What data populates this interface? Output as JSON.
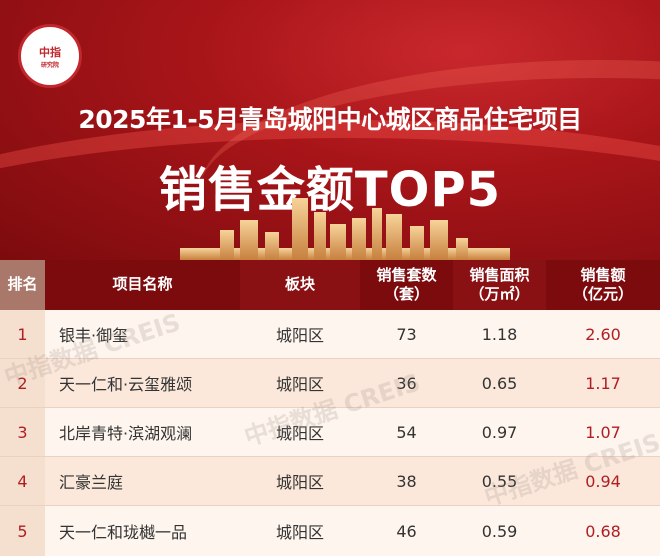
{
  "header": {
    "logo_text": "中指",
    "logo_ring": "CHINA INDEX ACADEMY",
    "logo_sub": "研究院",
    "title_line1": "2025年1-5月青岛城阳中心城区商品住宅项目",
    "title_line2": "销售金额TOP5"
  },
  "table": {
    "columns": [
      "排名",
      "项目名称",
      "板块",
      "销售套数\n（套）",
      "销售面积\n（万㎡）",
      "销售额\n（亿元）"
    ],
    "rows": [
      {
        "rank": "1",
        "name": "银丰·御玺",
        "block": "城阳区",
        "units": "73",
        "area": "1.18",
        "amount": "2.60"
      },
      {
        "rank": "2",
        "name": "天一仁和·云玺雅颂",
        "block": "城阳区",
        "units": "36",
        "area": "0.65",
        "amount": "1.17"
      },
      {
        "rank": "3",
        "name": "北岸青特·滨湖观澜",
        "block": "城阳区",
        "units": "54",
        "area": "0.97",
        "amount": "1.07"
      },
      {
        "rank": "4",
        "name": "汇豪兰庭",
        "block": "城阳区",
        "units": "38",
        "area": "0.55",
        "amount": "0.94"
      },
      {
        "rank": "5",
        "name": "天一仁和珑樾一品",
        "block": "城阳区",
        "units": "46",
        "area": "0.59",
        "amount": "0.68"
      }
    ]
  },
  "watermark": "中指数据 CREIS",
  "colors": {
    "accent": "#b01e23",
    "header_bg": "#7c0b0e"
  }
}
